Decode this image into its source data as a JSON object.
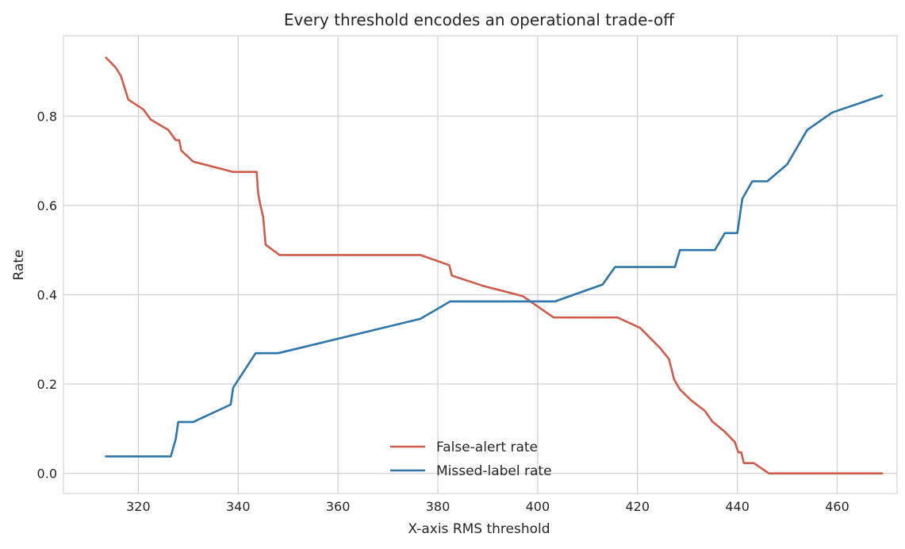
{
  "chart_data": {
    "type": "line",
    "title": "Every threshold encodes an operational trade-off",
    "xlabel": "X-axis RMS threshold",
    "ylabel": "Rate",
    "xlim": [
      305,
      472
    ],
    "ylim": [
      -0.045,
      0.98
    ],
    "xticks": [
      320,
      340,
      360,
      380,
      400,
      420,
      440,
      460
    ],
    "yticks": [
      0.0,
      0.2,
      0.4,
      0.6,
      0.8
    ],
    "ytick_labels": [
      "0.0",
      "0.2",
      "0.4",
      "0.6",
      "0.8"
    ],
    "grid": true,
    "legend_position": "lower-center",
    "series": [
      {
        "name": "False-alert rate",
        "color": "#cd5c4b",
        "x": [
          313.5,
          314.5,
          315.5,
          316.5,
          318.0,
          321.0,
          322.5,
          326.0,
          327.5,
          328.2,
          328.6,
          331.0,
          339.0,
          343.7,
          344.0,
          344.5,
          345.0,
          345.5,
          348.3,
          376.5,
          382.3,
          382.8,
          389.0,
          397.0,
          403.2,
          416.0,
          420.5,
          424.5,
          426.3,
          426.8,
          427.3,
          428.5,
          430.8,
          433.5,
          435.0,
          437.5,
          439.5,
          440.2,
          440.8,
          441.3,
          443.3,
          446.3,
          469.0
        ],
        "y": [
          0.931,
          0.92,
          0.908,
          0.89,
          0.837,
          0.815,
          0.792,
          0.769,
          0.746,
          0.746,
          0.723,
          0.698,
          0.675,
          0.675,
          0.628,
          0.598,
          0.575,
          0.512,
          0.489,
          0.489,
          0.466,
          0.443,
          0.42,
          0.397,
          0.349,
          0.349,
          0.326,
          0.281,
          0.256,
          0.235,
          0.211,
          0.188,
          0.163,
          0.14,
          0.116,
          0.093,
          0.07,
          0.047,
          0.047,
          0.023,
          0.023,
          0.0,
          0.0
        ]
      },
      {
        "name": "Missed-label rate",
        "color": "#2e75aa",
        "x": [
          313.5,
          326.5,
          327.5,
          328.0,
          331.0,
          338.5,
          339.0,
          343.5,
          348.0,
          376.5,
          382.5,
          403.5,
          413.0,
          415.5,
          427.5,
          428.5,
          435.5,
          437.5,
          440.0,
          441.0,
          443.0,
          446.0,
          450.0,
          454.0,
          459.0,
          469.0
        ],
        "y": [
          0.038,
          0.038,
          0.077,
          0.115,
          0.115,
          0.154,
          0.192,
          0.269,
          0.269,
          0.346,
          0.385,
          0.385,
          0.423,
          0.462,
          0.462,
          0.5,
          0.5,
          0.538,
          0.538,
          0.615,
          0.654,
          0.654,
          0.692,
          0.769,
          0.808,
          0.846
        ]
      }
    ]
  }
}
